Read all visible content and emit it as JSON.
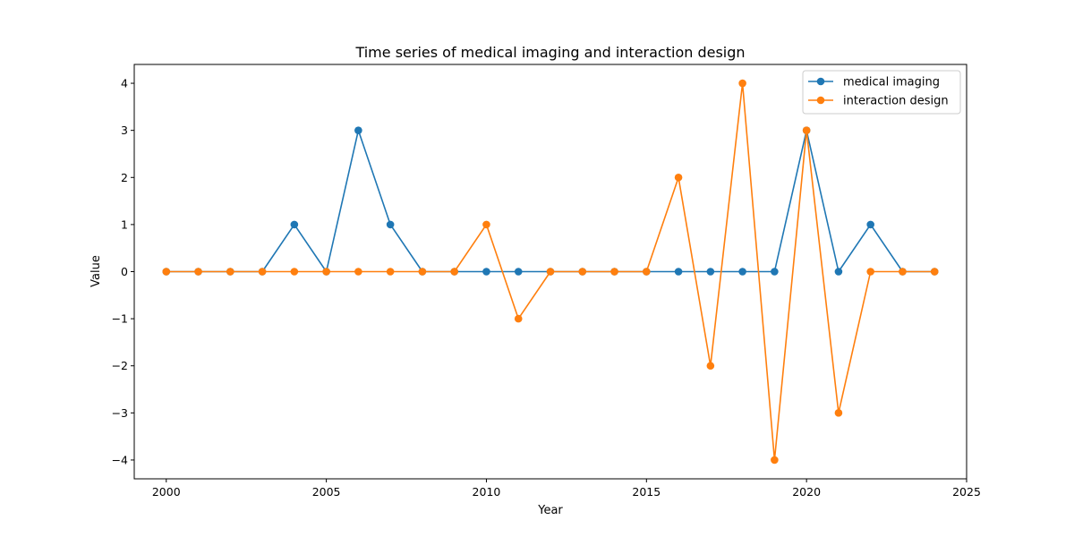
{
  "chart_data": {
    "type": "line",
    "title": "Time series of medical imaging and interaction design",
    "xlabel": "Year",
    "ylabel": "Value",
    "xlim": [
      1999,
      2025
    ],
    "ylim": [
      -4.4,
      4.4
    ],
    "xticks": [
      2000,
      2005,
      2010,
      2015,
      2020,
      2025
    ],
    "yticks": [
      -4,
      -3,
      -2,
      -1,
      0,
      1,
      2,
      3,
      4
    ],
    "legend_position": "top-right",
    "grid": false,
    "x": [
      2000,
      2001,
      2002,
      2003,
      2004,
      2005,
      2006,
      2007,
      2008,
      2009,
      2010,
      2011,
      2012,
      2013,
      2014,
      2015,
      2016,
      2017,
      2018,
      2019,
      2020,
      2021,
      2022,
      2023,
      2024
    ],
    "series": [
      {
        "name": "medical imaging",
        "color": "#1f77b4",
        "values": [
          0,
          0,
          0,
          0,
          1,
          0,
          3,
          1,
          0,
          0,
          0,
          0,
          0,
          0,
          0,
          0,
          0,
          0,
          0,
          0,
          3,
          0,
          1,
          0,
          0
        ]
      },
      {
        "name": "interaction design",
        "color": "#ff7f0e",
        "values": [
          0,
          0,
          0,
          0,
          0,
          0,
          0,
          0,
          0,
          0,
          1,
          -1,
          0,
          0,
          0,
          0,
          2,
          -2,
          4,
          -4,
          3,
          -3,
          0,
          0,
          0
        ]
      }
    ]
  }
}
